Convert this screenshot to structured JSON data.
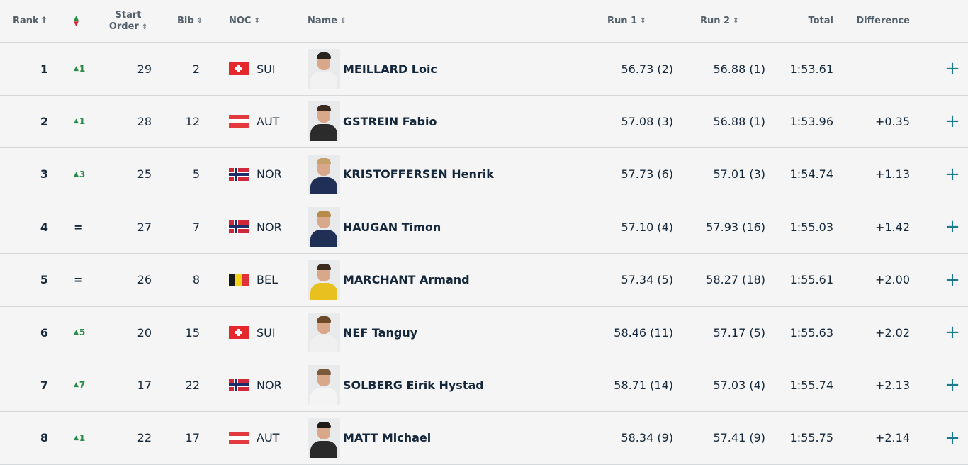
{
  "header": {
    "rank": "Rank",
    "rank_sort": "↑",
    "movement_icon": "up-down-arrows-icon",
    "start_line1": "Start",
    "start_line2": "Order",
    "bib": "Bib",
    "noc": "NOC",
    "name": "Name",
    "run1": "Run 1",
    "run2": "Run 2",
    "total": "Total",
    "difference": "Difference"
  },
  "colors": {
    "background": "#f4f5f4",
    "text": "#15273a",
    "up": "#2a8a48",
    "plus": "#1d7a8c"
  },
  "rows": [
    {
      "rank": "1",
      "move": "1",
      "move_type": "up",
      "start": "29",
      "bib": "2",
      "flag": "sui",
      "noc": "SUI",
      "name": "MEILLARD Loic",
      "run1": "56.73 (2)",
      "run2": "56.88 (1)",
      "total": "1:53.61",
      "diff": ""
    },
    {
      "rank": "2",
      "move": "1",
      "move_type": "up",
      "start": "28",
      "bib": "12",
      "flag": "aut",
      "noc": "AUT",
      "name": "GSTREIN Fabio",
      "run1": "57.08 (3)",
      "run2": "56.88 (1)",
      "total": "1:53.96",
      "diff": "+0.35"
    },
    {
      "rank": "3",
      "move": "3",
      "move_type": "up",
      "start": "25",
      "bib": "5",
      "flag": "nor",
      "noc": "NOR",
      "name": "KRISTOFFERSEN Henrik",
      "run1": "57.73 (6)",
      "run2": "57.01 (3)",
      "total": "1:54.74",
      "diff": "+1.13"
    },
    {
      "rank": "4",
      "move": "=",
      "move_type": "eq",
      "start": "27",
      "bib": "7",
      "flag": "nor",
      "noc": "NOR",
      "name": "HAUGAN Timon",
      "run1": "57.10 (4)",
      "run2": "57.93 (16)",
      "total": "1:55.03",
      "diff": "+1.42"
    },
    {
      "rank": "5",
      "move": "=",
      "move_type": "eq",
      "start": "26",
      "bib": "8",
      "flag": "bel",
      "noc": "BEL",
      "name": "MARCHANT Armand",
      "run1": "57.34 (5)",
      "run2": "58.27 (18)",
      "total": "1:55.61",
      "diff": "+2.00"
    },
    {
      "rank": "6",
      "move": "5",
      "move_type": "up",
      "start": "20",
      "bib": "15",
      "flag": "sui",
      "noc": "SUI",
      "name": "NEF Tanguy",
      "run1": "58.46 (11)",
      "run2": "57.17 (5)",
      "total": "1:55.63",
      "diff": "+2.02"
    },
    {
      "rank": "7",
      "move": "7",
      "move_type": "up",
      "start": "17",
      "bib": "22",
      "flag": "nor",
      "noc": "NOR",
      "name": "SOLBERG Eirik Hystad",
      "run1": "58.71 (14)",
      "run2": "57.03 (4)",
      "total": "1:55.74",
      "diff": "+2.13"
    },
    {
      "rank": "8",
      "move": "1",
      "move_type": "up",
      "start": "22",
      "bib": "17",
      "flag": "aut",
      "noc": "AUT",
      "name": "MATT Michael",
      "run1": "58.34 (9)",
      "run2": "57.41 (9)",
      "total": "1:55.75",
      "diff": "+2.14"
    }
  ],
  "expand_icon": "plus-icon",
  "expand_symbol": "+"
}
